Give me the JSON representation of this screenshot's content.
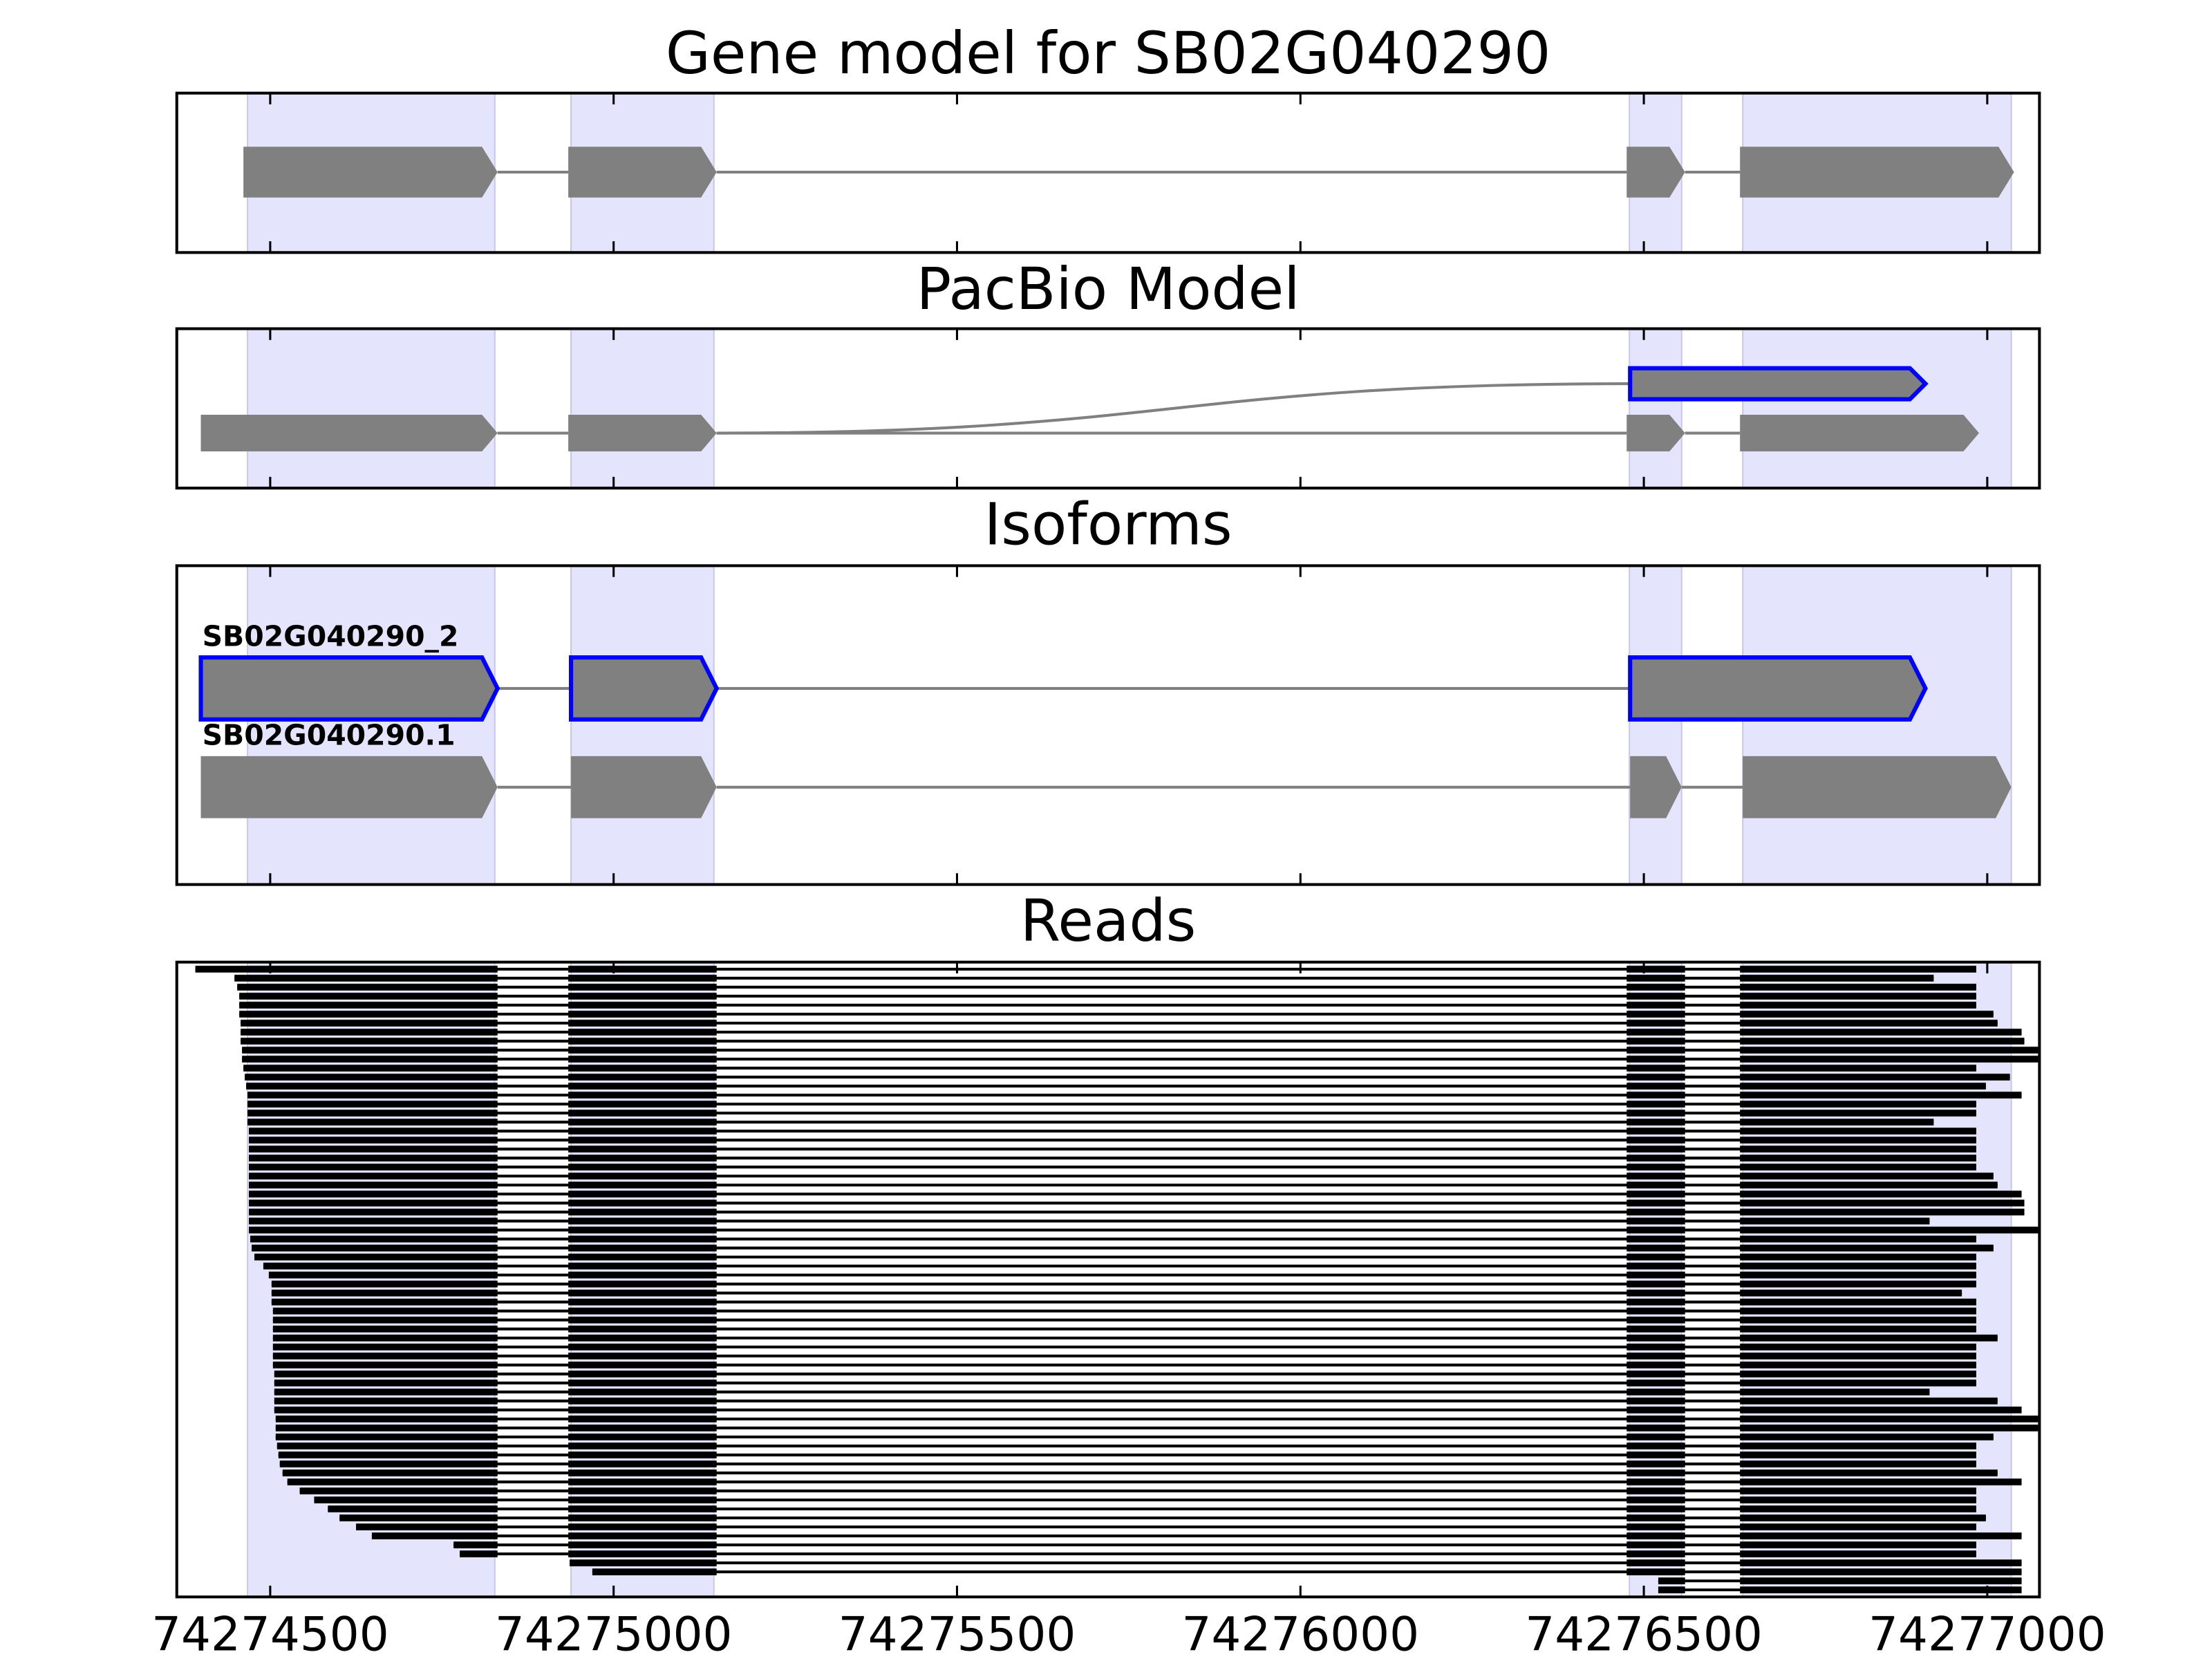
{
  "chart_data": [
    {
      "type": "gene-model",
      "title": "Gene model for SB02G040290",
      "xlim": [
        74274364,
        74277076
      ],
      "highlight": [
        [
          74274467,
          74274827
        ],
        [
          74274938,
          74275146
        ],
        [
          74276479,
          74276555
        ],
        [
          74276644,
          74277035
        ]
      ],
      "highlight_color": "#e4e4fc",
      "feature_color": "#808080",
      "rows": [
        {
          "exons": [
            [
              74274461,
              74274831
            ],
            [
              74274934,
              74275150
            ],
            [
              74276475,
              74276560
            ],
            [
              74276640,
              74277039
            ]
          ]
        }
      ]
    },
    {
      "type": "gene-model",
      "title": "PacBio Model",
      "xlim": [
        74274364,
        74277076
      ],
      "branching": true,
      "highlight": [
        [
          74274467,
          74274827
        ],
        [
          74274938,
          74275146
        ],
        [
          74276479,
          74276555
        ],
        [
          74276644,
          74277035
        ]
      ],
      "highlight_color": "#e4e4fc",
      "feature_color": "#808080",
      "rows": [
        {
          "exons": [
            [
              74276480,
              74276910
            ]
          ],
          "outline": "#0000ff"
        },
        {
          "exons": [
            [
              74274399,
              74274831
            ],
            [
              74274934,
              74275150
            ],
            [
              74276475,
              74276560
            ],
            [
              74276640,
              74276988
            ]
          ]
        }
      ]
    },
    {
      "type": "gene-model",
      "title": "Isoforms",
      "xlim": [
        74274364,
        74277076
      ],
      "highlight": [
        [
          74274467,
          74274827
        ],
        [
          74274938,
          74275146
        ],
        [
          74276479,
          74276555
        ],
        [
          74276644,
          74277035
        ]
      ],
      "highlight_color": "#e4e4fc",
      "feature_color": "#808080",
      "rows": [
        {
          "name": "SB02G040290_2",
          "exons": [
            [
              74274399,
              74274831
            ],
            [
              74274938,
              74275150
            ],
            [
              74276480,
              74276910
            ]
          ],
          "outline": "#0000ff"
        },
        {
          "name": "SB02G040290.1",
          "exons": [
            [
              74274399,
              74274831
            ],
            [
              74274938,
              74275150
            ],
            [
              74276480,
              74276555
            ],
            [
              74276644,
              74277035
            ]
          ]
        }
      ]
    },
    {
      "type": "reads",
      "title": "Reads",
      "xlim": [
        74274364,
        74277076
      ],
      "xticks": [
        74274500,
        74275000,
        74275500,
        74276000,
        74276500,
        74277000
      ],
      "highlight": [
        [
          74274467,
          74274827
        ],
        [
          74274938,
          74275146
        ],
        [
          74276479,
          74276555
        ],
        [
          74276644,
          74277035
        ]
      ],
      "highlight_color": "#e4e4fc",
      "read_color": "#000000",
      "reads": [
        [
          74274391,
          74276984
        ],
        [
          74274448,
          74276922
        ],
        [
          74274452,
          74276984
        ],
        [
          74274455,
          74276984
        ],
        [
          74274455,
          74276984
        ],
        [
          74274455,
          74277009
        ],
        [
          74274457,
          74277015
        ],
        [
          74274457,
          74277050
        ],
        [
          74274457,
          74277054
        ],
        [
          74274459,
          74277074
        ],
        [
          74274459,
          74277074
        ],
        [
          74274461,
          74276984
        ],
        [
          74274463,
          74277033
        ],
        [
          74274465,
          74276998
        ],
        [
          74274467,
          74277050
        ],
        [
          74274467,
          74276984
        ],
        [
          74274467,
          74276984
        ],
        [
          74274467,
          74276922
        ],
        [
          74274469,
          74276984
        ],
        [
          74274469,
          74276984
        ],
        [
          74274469,
          74276984
        ],
        [
          74274469,
          74276984
        ],
        [
          74274469,
          74276984
        ],
        [
          74274469,
          74277009
        ],
        [
          74274469,
          74277015
        ],
        [
          74274469,
          74277050
        ],
        [
          74274469,
          74277054
        ],
        [
          74274469,
          74277054
        ],
        [
          74274469,
          74276916
        ],
        [
          74274469,
          74277074
        ],
        [
          74274471,
          74276984
        ],
        [
          74274473,
          74277009
        ],
        [
          74274477,
          74276984
        ],
        [
          74274490,
          74276984
        ],
        [
          74274498,
          74276984
        ],
        [
          74274502,
          74276984
        ],
        [
          74274502,
          74276963
        ],
        [
          74274502,
          74276984
        ],
        [
          74274504,
          74276984
        ],
        [
          74274504,
          74276984
        ],
        [
          74274504,
          74276984
        ],
        [
          74274504,
          74277015
        ],
        [
          74274504,
          74276984
        ],
        [
          74274504,
          74276984
        ],
        [
          74274504,
          74276984
        ],
        [
          74274506,
          74276984
        ],
        [
          74274506,
          74276984
        ],
        [
          74274506,
          74276916
        ],
        [
          74274506,
          74277015
        ],
        [
          74274506,
          74277050
        ],
        [
          74274508,
          74277074
        ],
        [
          74274508,
          74277074
        ],
        [
          74274508,
          74277009
        ],
        [
          74274510,
          74276984
        ],
        [
          74274512,
          74276984
        ],
        [
          74274514,
          74276984
        ],
        [
          74274518,
          74277015
        ],
        [
          74274525,
          74277050
        ],
        [
          74274543,
          74276984
        ],
        [
          74274564,
          74276984
        ],
        [
          74274584,
          74276984
        ],
        [
          74274601,
          74276998
        ],
        [
          74274625,
          74276984
        ],
        [
          74274648,
          74277050
        ],
        [
          74274767,
          74276984
        ],
        [
          74274776,
          74276984
        ],
        [
          74274936,
          74277050
        ],
        [
          74274969,
          74277050
        ],
        [
          74276521,
          74277050
        ],
        [
          74276521,
          74277050
        ]
      ]
    }
  ]
}
